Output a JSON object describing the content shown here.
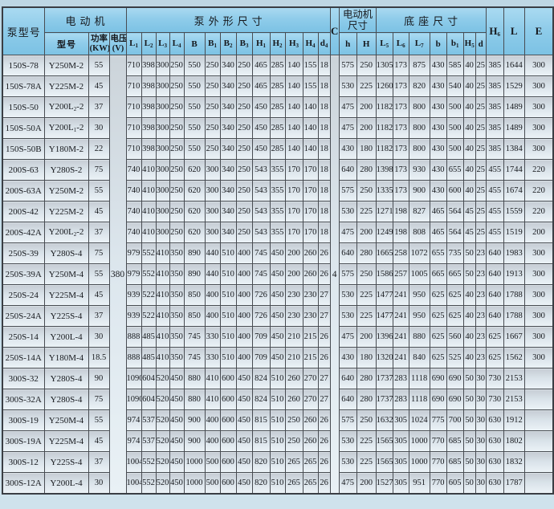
{
  "table": {
    "header": {
      "pump_model": "泵型号",
      "motor_group": "电动机",
      "motor_model": "型号",
      "power_line1": "功率",
      "power_line2": "(KW)",
      "voltage_line1": "电压",
      "voltage_line2": "(V)",
      "pump_dims_group": "泵外形尺寸",
      "pump_dim_cols": [
        "L1",
        "L2",
        "L3",
        "L4",
        "B",
        "B1",
        "B2",
        "B3",
        "H1",
        "H2",
        "H3",
        "H4",
        "d4"
      ],
      "c_col": "C",
      "motor_dims_line1": "电动机",
      "motor_dims_line2": "尺寸",
      "motor_dim_cols": [
        "h",
        "H"
      ],
      "base_dims_group": "底座尺寸",
      "base_dim_cols": [
        "L5",
        "L6",
        "L7",
        "b",
        "b1",
        "H5",
        "d"
      ],
      "h6_col": "H6",
      "l_col": "L",
      "e_col": "E"
    },
    "merged": {
      "voltage_value": "380",
      "c_value": "4"
    },
    "rows": [
      {
        "model": "150S-78",
        "motor": "Y250M-2",
        "power": "55",
        "dims": [
          "710",
          "398",
          "300",
          "250",
          "550",
          "250",
          "340",
          "250",
          "465",
          "285",
          "140",
          "155",
          "18"
        ],
        "motor_dims": [
          "575",
          "250"
        ],
        "base": [
          "1305",
          "173",
          "875",
          "430",
          "585",
          "40",
          "25"
        ],
        "h6": "385",
        "l": "1644",
        "e": "300"
      },
      {
        "model": "150S-78A",
        "motor": "Y225M-2",
        "power": "45",
        "dims": [
          "710",
          "398",
          "300",
          "250",
          "550",
          "250",
          "340",
          "250",
          "465",
          "285",
          "140",
          "155",
          "18"
        ],
        "motor_dims": [
          "530",
          "225"
        ],
        "base": [
          "1260",
          "173",
          "820",
          "430",
          "540",
          "40",
          "25"
        ],
        "h6": "385",
        "l": "1529",
        "e": "300"
      },
      {
        "model": "150S-50",
        "motor": "Y200L2-2",
        "power": "37",
        "dims": [
          "710",
          "398",
          "300",
          "250",
          "550",
          "250",
          "340",
          "250",
          "450",
          "285",
          "140",
          "140",
          "18"
        ],
        "motor_dims": [
          "475",
          "200"
        ],
        "base": [
          "1182",
          "173",
          "800",
          "430",
          "500",
          "40",
          "25"
        ],
        "h6": "385",
        "l": "1489",
        "e": "300"
      },
      {
        "model": "150S-50A",
        "motor": "Y200L1-2",
        "power": "30",
        "dims": [
          "710",
          "398",
          "300",
          "250",
          "550",
          "250",
          "340",
          "250",
          "450",
          "285",
          "140",
          "140",
          "18"
        ],
        "motor_dims": [
          "475",
          "200"
        ],
        "base": [
          "1182",
          "173",
          "800",
          "430",
          "500",
          "40",
          "25"
        ],
        "h6": "385",
        "l": "1489",
        "e": "300"
      },
      {
        "model": "150S-50B",
        "motor": "Y180M-2",
        "power": "22",
        "dims": [
          "710",
          "398",
          "300",
          "250",
          "550",
          "250",
          "340",
          "250",
          "450",
          "285",
          "140",
          "140",
          "18"
        ],
        "motor_dims": [
          "430",
          "180"
        ],
        "base": [
          "1182",
          "173",
          "800",
          "430",
          "500",
          "40",
          "25"
        ],
        "h6": "385",
        "l": "1384",
        "e": "300"
      },
      {
        "model": "200S-63",
        "motor": "Y280S-2",
        "power": "75",
        "dims": [
          "740",
          "410",
          "300",
          "250",
          "620",
          "300",
          "340",
          "250",
          "543",
          "355",
          "170",
          "170",
          "18"
        ],
        "motor_dims": [
          "640",
          "280"
        ],
        "base": [
          "1398",
          "173",
          "930",
          "430",
          "655",
          "40",
          "25"
        ],
        "h6": "455",
        "l": "1744",
        "e": "220"
      },
      {
        "model": "200S-63A",
        "motor": "Y250M-2",
        "power": "55",
        "dims": [
          "740",
          "410",
          "300",
          "250",
          "620",
          "300",
          "340",
          "250",
          "543",
          "355",
          "170",
          "170",
          "18"
        ],
        "motor_dims": [
          "575",
          "250"
        ],
        "base": [
          "1335",
          "173",
          "900",
          "430",
          "600",
          "40",
          "25"
        ],
        "h6": "455",
        "l": "1674",
        "e": "220"
      },
      {
        "model": "200S-42",
        "motor": "Y225M-2",
        "power": "45",
        "dims": [
          "740",
          "410",
          "300",
          "250",
          "620",
          "300",
          "340",
          "250",
          "543",
          "355",
          "170",
          "170",
          "18"
        ],
        "motor_dims": [
          "530",
          "225"
        ],
        "base": [
          "1271",
          "198",
          "827",
          "465",
          "564",
          "45",
          "25"
        ],
        "h6": "455",
        "l": "1559",
        "e": "220"
      },
      {
        "model": "200S-42A",
        "motor": "Y200L2-2",
        "power": "37",
        "dims": [
          "740",
          "410",
          "300",
          "250",
          "620",
          "300",
          "340",
          "250",
          "543",
          "355",
          "170",
          "170",
          "18"
        ],
        "motor_dims": [
          "475",
          "200"
        ],
        "base": [
          "1249",
          "198",
          "808",
          "465",
          "564",
          "45",
          "25"
        ],
        "h6": "455",
        "l": "1519",
        "e": "200"
      },
      {
        "model": "250S-39",
        "motor": "Y280S-4",
        "power": "75",
        "dims": [
          "979",
          "552",
          "410",
          "350",
          "890",
          "440",
          "510",
          "400",
          "745",
          "450",
          "200",
          "260",
          "26"
        ],
        "motor_dims": [
          "640",
          "280"
        ],
        "base": [
          "1665",
          "258",
          "1072",
          "655",
          "735",
          "50",
          "23"
        ],
        "h6": "640",
        "l": "1983",
        "e": "300"
      },
      {
        "model": "250S-39A",
        "motor": "Y250M-4",
        "power": "55",
        "dims": [
          "979",
          "552",
          "410",
          "350",
          "890",
          "440",
          "510",
          "400",
          "745",
          "450",
          "200",
          "260",
          "26"
        ],
        "motor_dims": [
          "575",
          "250"
        ],
        "base": [
          "1586",
          "257",
          "1005",
          "665",
          "665",
          "50",
          "23"
        ],
        "h6": "640",
        "l": "1913",
        "e": "300"
      },
      {
        "model": "250S-24",
        "motor": "Y225M-4",
        "power": "45",
        "dims": [
          "939",
          "522",
          "410",
          "350",
          "850",
          "400",
          "510",
          "400",
          "726",
          "450",
          "230",
          "230",
          "27"
        ],
        "motor_dims": [
          "530",
          "225"
        ],
        "base": [
          "1477",
          "241",
          "950",
          "625",
          "625",
          "40",
          "23"
        ],
        "h6": "640",
        "l": "1788",
        "e": "300"
      },
      {
        "model": "250S-24A",
        "motor": "Y225S-4",
        "power": "37",
        "dims": [
          "939",
          "522",
          "410",
          "350",
          "850",
          "400",
          "510",
          "400",
          "726",
          "450",
          "230",
          "230",
          "27"
        ],
        "motor_dims": [
          "530",
          "225"
        ],
        "base": [
          "1477",
          "241",
          "950",
          "625",
          "625",
          "40",
          "23"
        ],
        "h6": "640",
        "l": "1788",
        "e": "300"
      },
      {
        "model": "250S-14",
        "motor": "Y200L-4",
        "power": "30",
        "dims": [
          "888",
          "485",
          "410",
          "350",
          "745",
          "330",
          "510",
          "400",
          "709",
          "450",
          "210",
          "215",
          "26"
        ],
        "motor_dims": [
          "475",
          "200"
        ],
        "base": [
          "1396",
          "241",
          "880",
          "625",
          "560",
          "40",
          "23"
        ],
        "h6": "625",
        "l": "1667",
        "e": "300"
      },
      {
        "model": "250S-14A",
        "motor": "Y180M-4",
        "power": "18.5",
        "dims": [
          "888",
          "485",
          "410",
          "350",
          "745",
          "330",
          "510",
          "400",
          "709",
          "450",
          "210",
          "215",
          "26"
        ],
        "motor_dims": [
          "430",
          "180"
        ],
        "base": [
          "1320",
          "241",
          "840",
          "625",
          "525",
          "40",
          "23"
        ],
        "h6": "625",
        "l": "1562",
        "e": "300"
      },
      {
        "model": "300S-32",
        "motor": "Y280S-4",
        "power": "90",
        "dims": [
          "1090",
          "604",
          "520",
          "450",
          "880",
          "410",
          "600",
          "450",
          "824",
          "510",
          "260",
          "270",
          "27"
        ],
        "motor_dims": [
          "640",
          "280"
        ],
        "base": [
          "1737",
          "283",
          "1118",
          "690",
          "690",
          "50",
          "30"
        ],
        "h6": "730",
        "l": "2153",
        "e": ""
      },
      {
        "model": "300S-32A",
        "motor": "Y280S-4",
        "power": "75",
        "dims": [
          "1090",
          "604",
          "520",
          "450",
          "880",
          "410",
          "600",
          "450",
          "824",
          "510",
          "260",
          "270",
          "27"
        ],
        "motor_dims": [
          "640",
          "280"
        ],
        "base": [
          "1737",
          "283",
          "1118",
          "690",
          "690",
          "50",
          "30"
        ],
        "h6": "730",
        "l": "2153",
        "e": ""
      },
      {
        "model": "300S-19",
        "motor": "Y250M-4",
        "power": "55",
        "dims": [
          "974",
          "537",
          "520",
          "450",
          "900",
          "400",
          "600",
          "450",
          "815",
          "510",
          "250",
          "260",
          "26"
        ],
        "motor_dims": [
          "575",
          "250"
        ],
        "base": [
          "1632",
          "305",
          "1024",
          "775",
          "700",
          "50",
          "30"
        ],
        "h6": "630",
        "l": "1912",
        "e": ""
      },
      {
        "model": "300S-19A",
        "motor": "Y225M-4",
        "power": "45",
        "dims": [
          "974",
          "537",
          "520",
          "450",
          "900",
          "400",
          "600",
          "450",
          "815",
          "510",
          "250",
          "260",
          "26"
        ],
        "motor_dims": [
          "530",
          "225"
        ],
        "base": [
          "1565",
          "305",
          "1000",
          "770",
          "685",
          "50",
          "30"
        ],
        "h6": "630",
        "l": "1802",
        "e": ""
      },
      {
        "model": "300S-12",
        "motor": "Y225S-4",
        "power": "37",
        "dims": [
          "1004",
          "552",
          "520",
          "450",
          "1000",
          "500",
          "600",
          "450",
          "820",
          "510",
          "265",
          "265",
          "26"
        ],
        "motor_dims": [
          "530",
          "225"
        ],
        "base": [
          "1565",
          "305",
          "1000",
          "770",
          "685",
          "50",
          "30"
        ],
        "h6": "630",
        "l": "1832",
        "e": ""
      },
      {
        "model": "300S-12A",
        "motor": "Y200L-4",
        "power": "30",
        "dims": [
          "1004",
          "552",
          "520",
          "450",
          "1000",
          "500",
          "600",
          "450",
          "820",
          "510",
          "265",
          "265",
          "26"
        ],
        "motor_dims": [
          "475",
          "200"
        ],
        "base": [
          "1527",
          "305",
          "951",
          "770",
          "605",
          "50",
          "30"
        ],
        "h6": "630",
        "l": "1787",
        "e": ""
      }
    ]
  },
  "colors": {
    "header_bg": "#8fccea",
    "row_top": "#c6cdd4",
    "row_bottom": "#ecf3f7",
    "border": "#484c52",
    "page_bg": "#c6dde9"
  }
}
